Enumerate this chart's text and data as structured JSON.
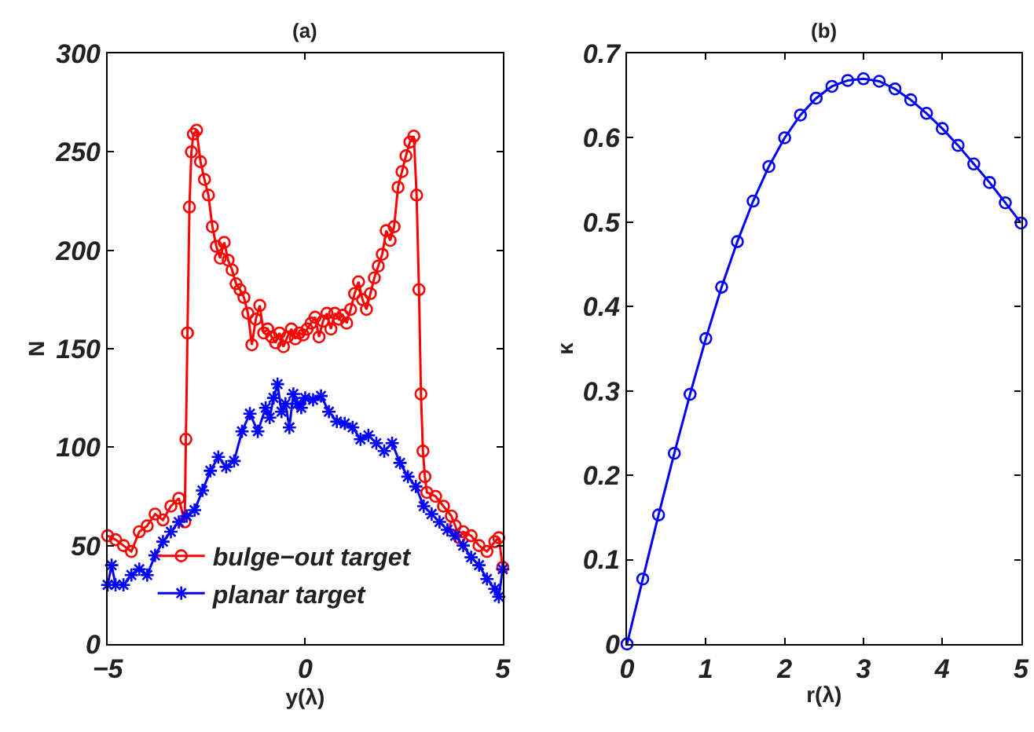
{
  "chart_data": [
    {
      "type": "line",
      "title": "(a)",
      "xlabel": "y(λ)",
      "ylabel": "N",
      "xlim": [
        -5,
        5
      ],
      "xticks": [
        {
          "value": -5,
          "label": "−5"
        },
        0,
        5
      ],
      "ylim": [
        0,
        300
      ],
      "yticks": [
        0,
        50,
        100,
        150,
        200,
        250,
        300
      ],
      "legend": "bottom left",
      "series": [
        {
          "name": "bulge−out target",
          "color": "#ff0000",
          "marker": "circle",
          "x": [
            -5,
            -4.8,
            -4.6,
            -4.4,
            -4.2,
            -4.0,
            -3.8,
            -3.6,
            -3.4,
            -3.2,
            -3.05,
            -3.02,
            -2.98,
            -2.93,
            -2.88,
            -2.83,
            -2.75,
            -2.65,
            -2.55,
            -2.45,
            -2.35,
            -2.25,
            -2.15,
            -2.05,
            -1.95,
            -1.85,
            -1.75,
            -1.65,
            -1.55,
            -1.45,
            -1.35,
            -1.25,
            -1.15,
            -1.05,
            -0.95,
            -0.85,
            -0.75,
            -0.65,
            -0.55,
            -0.45,
            -0.35,
            -0.25,
            -0.15,
            -0.05,
            0.05,
            0.15,
            0.25,
            0.35,
            0.45,
            0.55,
            0.65,
            0.75,
            0.85,
            0.95,
            1.05,
            1.15,
            1.25,
            1.35,
            1.45,
            1.55,
            1.65,
            1.75,
            1.85,
            1.95,
            2.05,
            2.15,
            2.25,
            2.35,
            2.45,
            2.55,
            2.65,
            2.75,
            2.82,
            2.88,
            2.93,
            2.98,
            3.03,
            3.08,
            3.3,
            3.5,
            3.7,
            3.8,
            3.9,
            4.0,
            4.2,
            4.4,
            4.6,
            4.8,
            4.9,
            5.0
          ],
          "values": [
            55,
            53,
            50,
            47,
            57,
            60,
            66,
            63,
            70,
            74,
            62,
            104,
            158,
            222,
            250,
            259,
            261,
            245,
            236,
            228,
            212,
            202,
            196,
            204,
            195,
            190,
            183,
            180,
            176,
            168,
            152,
            165,
            172,
            158,
            160,
            156,
            153,
            158,
            151,
            156,
            160,
            155,
            158,
            157,
            160,
            163,
            166,
            156,
            164,
            168,
            160,
            168,
            165,
            167,
            163,
            170,
            178,
            184,
            175,
            170,
            178,
            186,
            192,
            198,
            210,
            205,
            212,
            232,
            240,
            248,
            255,
            258,
            228,
            180,
            127,
            98,
            85,
            77,
            75,
            70,
            65,
            60,
            54,
            57,
            55,
            50,
            47,
            52,
            54,
            39
          ]
        },
        {
          "name": "planar target",
          "color": "#0000ff",
          "marker": "cross",
          "x": [
            -5,
            -4.9,
            -4.8,
            -4.6,
            -4.4,
            -4.2,
            -4.0,
            -3.8,
            -3.6,
            -3.4,
            -3.2,
            -3.0,
            -2.8,
            -2.6,
            -2.4,
            -2.2,
            -2.0,
            -1.8,
            -1.6,
            -1.4,
            -1.2,
            -1.0,
            -0.9,
            -0.8,
            -0.7,
            -0.6,
            -0.5,
            -0.4,
            -0.3,
            -0.2,
            -0.1,
            0,
            0.2,
            0.4,
            0.6,
            0.8,
            1.0,
            1.2,
            1.4,
            1.6,
            1.8,
            2.0,
            2.2,
            2.4,
            2.6,
            2.8,
            3.0,
            3.2,
            3.4,
            3.6,
            3.8,
            4.0,
            4.2,
            4.4,
            4.6,
            4.8,
            4.9,
            5.0
          ],
          "values": [
            30,
            40,
            30,
            30,
            35,
            38,
            35,
            45,
            52,
            57,
            62,
            65,
            68,
            78,
            88,
            95,
            90,
            93,
            108,
            117,
            108,
            120,
            115,
            125,
            132,
            118,
            122,
            110,
            127,
            122,
            120,
            125,
            124,
            126,
            118,
            113,
            112,
            110,
            104,
            106,
            102,
            98,
            102,
            92,
            85,
            80,
            70,
            66,
            62,
            58,
            55,
            50,
            44,
            40,
            33,
            28,
            24,
            38
          ]
        }
      ]
    },
    {
      "type": "line",
      "title": "(b)",
      "xlabel": "r(λ)",
      "ylabel": "κ",
      "xlim": [
        0,
        5
      ],
      "xticks": [
        0,
        1,
        2,
        3,
        4,
        5
      ],
      "ylim": [
        0,
        0.7
      ],
      "yticks": [
        0,
        0.1,
        0.2,
        0.3,
        0.4,
        0.5,
        0.6,
        0.7
      ],
      "legend": false,
      "series": [
        {
          "color": "#0000ff",
          "marker": "circle",
          "x": [
            0,
            0.2,
            0.4,
            0.6,
            0.8,
            1.0,
            1.2,
            1.4,
            1.6,
            1.8,
            2.0,
            2.2,
            2.4,
            2.6,
            2.8,
            3.0,
            3.2,
            3.4,
            3.6,
            3.8,
            4.0,
            4.2,
            4.4,
            4.6,
            4.8,
            5.0
          ],
          "values": [
            0,
            0.077,
            0.153,
            0.226,
            0.296,
            0.362,
            0.423,
            0.477,
            0.525,
            0.566,
            0.6,
            0.627,
            0.647,
            0.661,
            0.668,
            0.67,
            0.667,
            0.658,
            0.645,
            0.629,
            0.611,
            0.591,
            0.569,
            0.547,
            0.523,
            0.499
          ]
        }
      ]
    }
  ]
}
